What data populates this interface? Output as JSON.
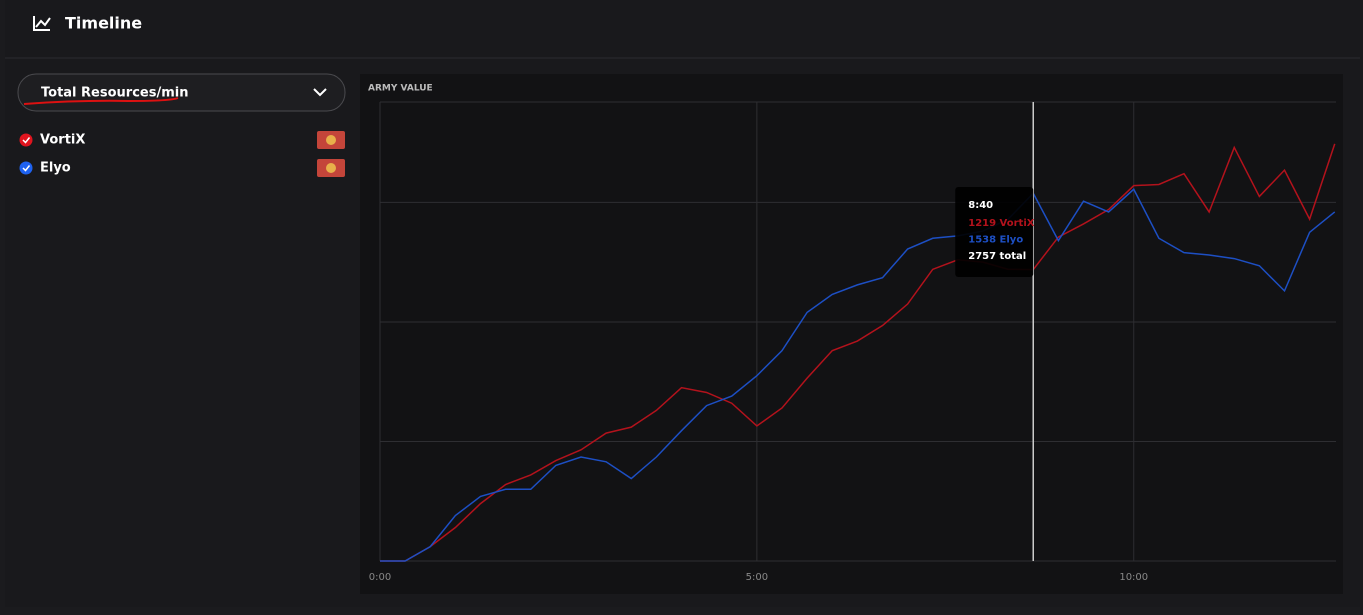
{
  "header": {
    "title": "Timeline"
  },
  "sidebar": {
    "dropdown": "Total Resources/min"
  },
  "chart_data": {
    "type": "line",
    "title": "ARMY VALUE",
    "x": [
      0,
      20,
      40,
      60,
      80,
      100,
      120,
      140,
      160,
      180,
      200,
      220,
      240,
      260,
      280,
      300,
      320,
      340,
      360,
      380,
      400,
      420,
      440,
      460,
      480,
      500,
      520,
      540,
      560,
      580,
      600,
      620,
      640,
      660,
      680,
      700,
      720,
      740,
      760
    ],
    "series": [
      {
        "name": "VortiX",
        "color": "#b3121c",
        "values": [
          0,
          0,
          60,
          140,
          240,
          320,
          360,
          420,
          465,
          535,
          560,
          630,
          725,
          705,
          660,
          565,
          640,
          765,
          880,
          920,
          985,
          1075,
          1220,
          1260,
          1250,
          1220,
          1219,
          1355,
          1410,
          1470,
          1570,
          1575,
          1620,
          1460,
          1730,
          1525,
          1635,
          1430,
          1745
        ]
      },
      {
        "name": "Elyo",
        "color": "#1d4fc4",
        "values": [
          0,
          0,
          60,
          190,
          270,
          300,
          300,
          400,
          435,
          415,
          345,
          435,
          545,
          650,
          690,
          775,
          880,
          1040,
          1115,
          1155,
          1185,
          1305,
          1350,
          1360,
          1380,
          1430,
          1538,
          1340,
          1505,
          1460,
          1555,
          1350,
          1290,
          1280,
          1265,
          1235,
          1130,
          1375,
          1460
        ]
      }
    ],
    "xlim": [
      0,
      761
    ],
    "ylim": [
      0,
      1920
    ],
    "xticks": [
      {
        "value": 0,
        "label": "0:00"
      },
      {
        "value": 300,
        "label": "5:00"
      },
      {
        "value": 600,
        "label": "10:00"
      }
    ],
    "yticks": [
      0,
      500,
      1000,
      1500
    ],
    "grid": true,
    "tooltip": {
      "x": 520,
      "label": "8:40",
      "rows": [
        "1219 VortiX",
        "1538 Elyo",
        "2757 total"
      ]
    }
  }
}
